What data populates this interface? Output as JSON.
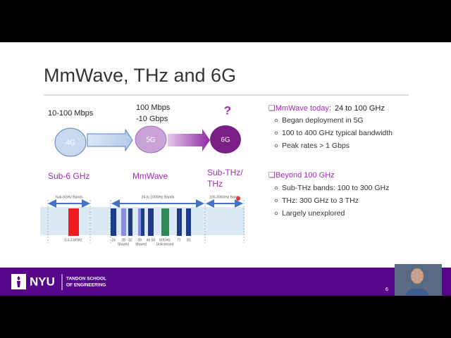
{
  "slide": {
    "title": "MmWave, THz and 6G",
    "diagram": {
      "rate_4g": "10-100 Mbps",
      "rate_5g": [
        "100 Mbps",
        "-10 Gbps"
      ],
      "rate_6g": "?",
      "node_4g": "4G",
      "node_5g": "5G",
      "node_6g": "6G",
      "band_sub6": "Sub-6 GHz",
      "band_mmwave": "MmWave",
      "band_subthz": [
        "Sub-THz/",
        "THz"
      ],
      "spectrum": {
        "sub6_label": "Sub-6GHz Bands",
        "mmwave_label": "24 to 100GHz Bands",
        "subthz_label": "100-300GHz Bands",
        "sub6_freq": "3.4-3.8GHz",
        "freqs": [
          "24",
          "28",
          "32",
          "39",
          "46 50",
          "60GHz",
          "71",
          "81"
        ],
        "notes": [
          "Shared",
          "Shared",
          "Unlicensed"
        ]
      }
    },
    "sections": [
      {
        "heading": "MmWave today:",
        "heading_value": "24 to 100 GHz",
        "bullets": [
          "Began deployment in 5G",
          "100 to 400 GHz typical bandwidth",
          "Peak rates > 1 Gbps"
        ]
      },
      {
        "heading": "Beyond 100 GHz",
        "bullets": [
          "Sub-THz bands:  100 to 300 GHz",
          "THz:  300 GHz to 3 THz",
          "Largely unexplored"
        ]
      }
    ],
    "footer": {
      "logo": "NYU",
      "school": [
        "TANDON SCHOOL",
        "OF ENGINEERING"
      ],
      "page": "6"
    }
  }
}
